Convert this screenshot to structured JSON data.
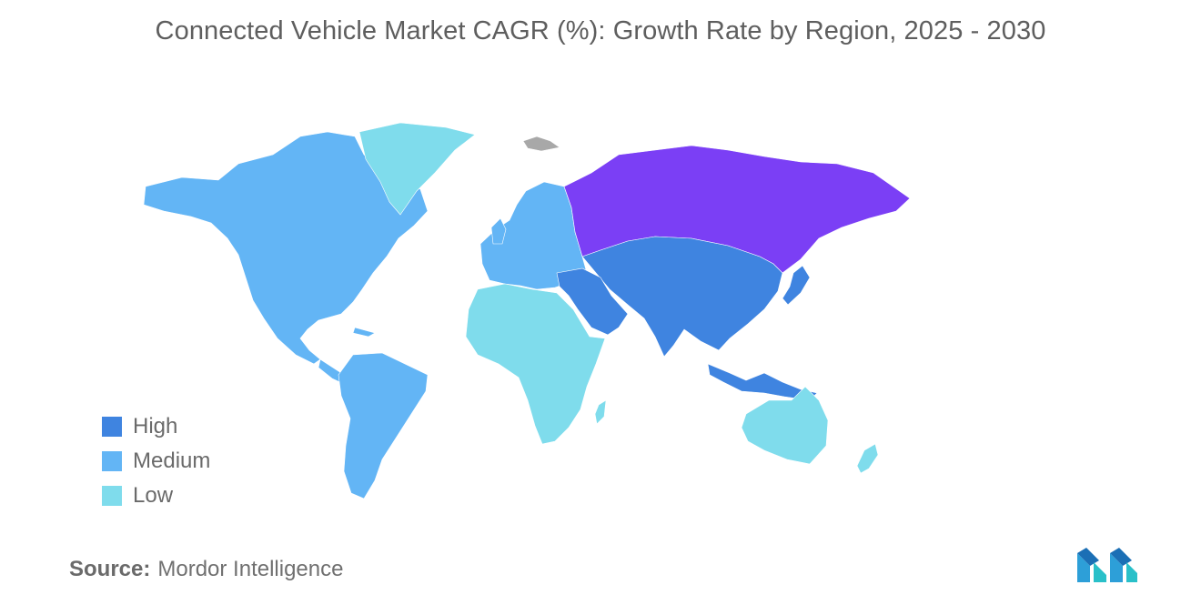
{
  "title": "Connected Vehicle Market CAGR (%): Growth Rate by Region, 2025 - 2030",
  "colors": {
    "very_high": "#7b3ff5",
    "high": "#3f84e0",
    "medium": "#63b5f5",
    "low": "#7fdcec",
    "no_data": "#a8a8a8"
  },
  "legend": [
    {
      "label": "High",
      "color": "#3f84e0"
    },
    {
      "label": "Medium",
      "color": "#63b5f5"
    },
    {
      "label": "Low",
      "color": "#7fdcec"
    }
  ],
  "regions": {
    "north_america": "medium",
    "south_america": "medium",
    "europe": "medium",
    "russia": "very_high",
    "asia_pacific": "high",
    "middle_east": "high",
    "africa": "low",
    "greenland": "low",
    "australia_nz": "low"
  },
  "source": {
    "label": "Source:",
    "value": "Mordor Intelligence"
  },
  "logo": {
    "icon": "mordor-intelligence-logo-icon"
  }
}
